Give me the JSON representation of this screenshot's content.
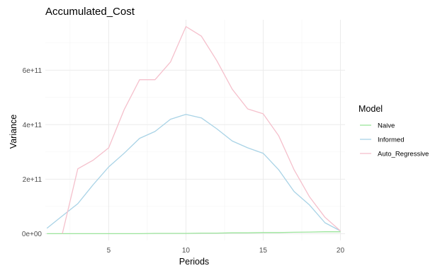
{
  "chart_data": {
    "type": "line",
    "title": "Accumulated_Cost",
    "xlabel": "Periods",
    "ylabel": "Variance",
    "xlim": [
      0.9,
      20.3
    ],
    "ylim": [
      -25000000000.0,
      785000000000.0
    ],
    "x_ticks": [
      5,
      10,
      15,
      20
    ],
    "x_tick_labels": [
      "5",
      "10",
      "15",
      "20"
    ],
    "y_ticks": [
      0,
      200000000000.0,
      400000000000.0,
      600000000000.0
    ],
    "y_tick_labels": [
      "0e+00",
      "2e+11",
      "4e+11",
      "6e+11"
    ],
    "grid": true,
    "legend": {
      "title": "Model",
      "position": "right"
    },
    "series": [
      {
        "name": "Naive",
        "color": "#9be49b",
        "x": [
          1,
          2,
          3,
          4,
          5,
          6,
          7,
          8,
          9,
          10,
          11,
          12,
          13,
          14,
          15,
          16,
          17,
          18,
          19,
          20
        ],
        "values": [
          0,
          0,
          0,
          0,
          0,
          0,
          0,
          1000000000.0,
          1000000000.0,
          1000000000.0,
          2000000000.0,
          2000000000.0,
          3000000000.0,
          3000000000.0,
          4000000000.0,
          4000000000.0,
          5000000000.0,
          6000000000.0,
          7000000000.0,
          7000000000.0
        ]
      },
      {
        "name": "Informed",
        "color": "#a9d3e6",
        "x": [
          1,
          2,
          3,
          4,
          5,
          6,
          7,
          8,
          9,
          10,
          11,
          12,
          13,
          14,
          15,
          16,
          17,
          18,
          19,
          20
        ],
        "values": [
          20000000000.0,
          65000000000.0,
          110000000000.0,
          180000000000.0,
          245000000000.0,
          295000000000.0,
          350000000000.0,
          375000000000.0,
          420000000000.0,
          438000000000.0,
          425000000000.0,
          385000000000.0,
          340000000000.0,
          315000000000.0,
          295000000000.0,
          235000000000.0,
          155000000000.0,
          105000000000.0,
          40000000000.0,
          10000000000.0
        ]
      },
      {
        "name": "Auto_Regressive",
        "color": "#f5c0cc",
        "x": [
          2,
          3,
          4,
          5,
          6,
          7,
          8,
          9,
          10,
          11,
          12,
          13,
          14,
          15,
          16,
          17,
          18,
          19,
          20
        ],
        "values": [
          0,
          238000000000.0,
          270000000000.0,
          315000000000.0,
          455000000000.0,
          565000000000.0,
          565000000000.0,
          630000000000.0,
          760000000000.0,
          725000000000.0,
          635000000000.0,
          530000000000.0,
          458000000000.0,
          440000000000.0,
          360000000000.0,
          235000000000.0,
          135000000000.0,
          60000000000.0,
          10000000000.0
        ]
      }
    ]
  }
}
